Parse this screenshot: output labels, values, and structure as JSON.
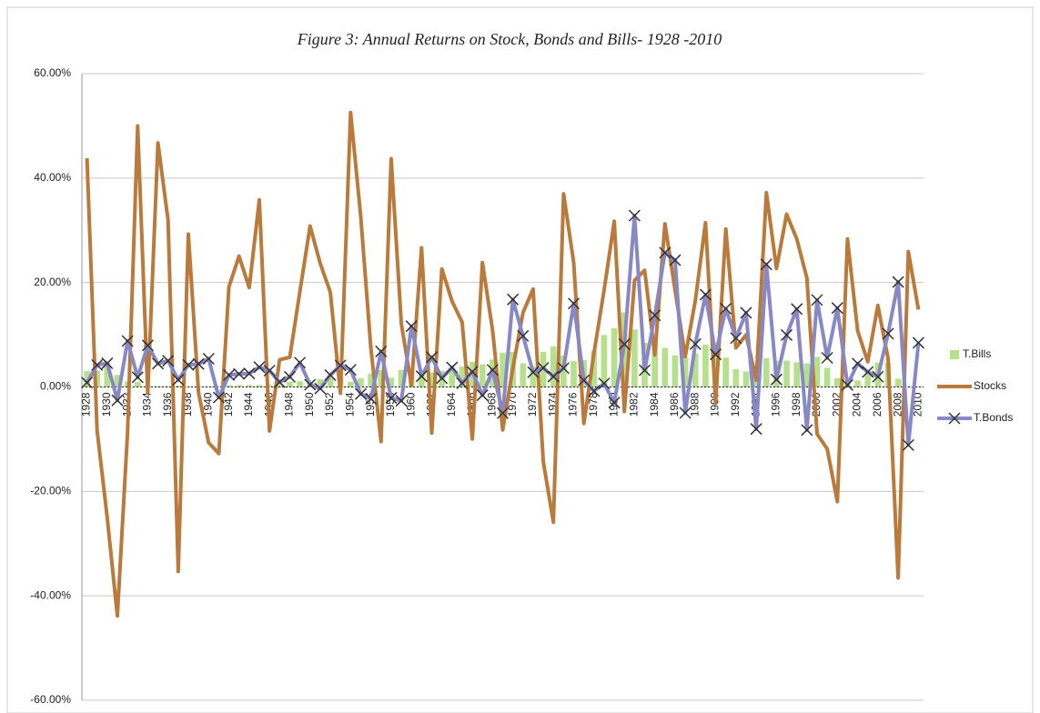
{
  "chart_data": {
    "type": "bar-line",
    "title": "Figure 3: Annual Returns on  Stock, Bonds and Bills- 1928 -2010",
    "categories": [
      "1928",
      null,
      "1930",
      null,
      "1932",
      null,
      "1934",
      null,
      "1936",
      null,
      "1938",
      null,
      "1940",
      null,
      "1942",
      null,
      "1944",
      null,
      "1946",
      null,
      "1948",
      null,
      "1950",
      null,
      "1952",
      null,
      "1954",
      null,
      "1956",
      null,
      "1958",
      null,
      "1960",
      null,
      "1962",
      null,
      "1964",
      null,
      "1966",
      null,
      "1968",
      null,
      "1970",
      null,
      "1972",
      null,
      "1974",
      null,
      "1976",
      null,
      "1978",
      null,
      "1980",
      null,
      "1982",
      null,
      "1984",
      null,
      "1986",
      null,
      "1988",
      null,
      "1990",
      null,
      "1992",
      null,
      "1994",
      null,
      "1996",
      null,
      "1998",
      null,
      "2000",
      null,
      "2002",
      null,
      "2004",
      null,
      "2006",
      null,
      "2008",
      null,
      "2010"
    ],
    "series": [
      {
        "name": "T.Bills",
        "type": "bar",
        "color": "#b6e08c",
        "values": [
          3.08,
          3.16,
          4.55,
          2.31,
          1.07,
          0.96,
          0.28,
          0.17,
          0.17,
          0.28,
          0.07,
          0.05,
          0.04,
          0.13,
          0.34,
          0.38,
          0.38,
          0.38,
          0.38,
          0.57,
          1.02,
          1.1,
          1.17,
          1.48,
          1.67,
          1.89,
          0.96,
          1.66,
          2.56,
          3.23,
          1.78,
          3.26,
          3.05,
          2.27,
          2.78,
          3.11,
          3.51,
          3.9,
          4.84,
          4.33,
          5.26,
          6.56,
          6.69,
          4.54,
          3.95,
          6.73,
          7.78,
          5.99,
          4.97,
          5.13,
          6.93,
          9.94,
          11.22,
          14.3,
          11.01,
          8.45,
          9.61,
          7.49,
          6.04,
          5.72,
          6.45,
          8.11,
          7.55,
          5.61,
          3.41,
          2.98,
          3.99,
          5.52,
          5.02,
          5.05,
          4.73,
          4.51,
          5.76,
          3.67,
          1.66,
          1.03,
          1.23,
          3.01,
          4.68,
          4.64,
          1.59,
          0.14,
          0.13
        ]
      },
      {
        "name": "Stocks",
        "type": "line",
        "color": "#b97a3c",
        "values": [
          43.81,
          -8.3,
          -25.12,
          -43.84,
          -8.64,
          49.98,
          -1.19,
          46.74,
          31.94,
          -35.34,
          29.28,
          -1.1,
          -10.67,
          -12.77,
          19.17,
          25.06,
          19.03,
          35.82,
          -8.43,
          5.2,
          5.7,
          18.3,
          30.81,
          23.68,
          18.15,
          -1.21,
          52.56,
          32.6,
          7.44,
          -10.46,
          43.72,
          12.06,
          0.34,
          26.64,
          -8.81,
          22.61,
          16.42,
          12.4,
          -9.97,
          23.8,
          10.81,
          -8.24,
          3.56,
          14.22,
          18.76,
          -14.31,
          -25.9,
          37,
          23.83,
          -6.98,
          6.51,
          18.52,
          31.74,
          -4.7,
          20.42,
          22.34,
          6.15,
          31.24,
          18.49,
          5.81,
          16.54,
          31.48,
          -3.06,
          30.23,
          7.49,
          9.97,
          1.33,
          37.2,
          22.68,
          33.1,
          28.34,
          20.89,
          -9.03,
          -11.85,
          -21.97,
          28.36,
          10.74,
          4.83,
          15.61,
          5.48,
          -36.58,
          25.94,
          14.82
        ]
      },
      {
        "name": "T.Bonds",
        "type": "line",
        "marker": "x",
        "color": "#8888c4",
        "values": [
          0.84,
          4.2,
          4.54,
          -2.56,
          8.79,
          1.86,
          7.96,
          4.47,
          5.02,
          1.38,
          4.21,
          4.41,
          5.4,
          -2.02,
          2.29,
          2.49,
          2.58,
          3.8,
          3.13,
          0.92,
          1.95,
          4.66,
          0.43,
          -0.3,
          2.27,
          4.14,
          3.29,
          -1.34,
          -2.26,
          6.8,
          -2.1,
          -2.65,
          11.64,
          2.06,
          5.69,
          1.68,
          3.73,
          0.72,
          2.91,
          -1.58,
          3.27,
          -5.01,
          16.75,
          9.79,
          2.82,
          3.66,
          1.99,
          3.61,
          15.98,
          1.29,
          -0.78,
          0.67,
          -2.99,
          8.2,
          32.81,
          3.2,
          13.73,
          25.71,
          24.28,
          -4.96,
          8.22,
          17.69,
          6.24,
          15,
          9.36,
          14.21,
          -8.04,
          23.48,
          1.43,
          9.94,
          14.92,
          -8.25,
          16.66,
          5.57,
          15.12,
          0.38,
          4.49,
          2.87,
          1.96,
          10.21,
          20.1,
          -11.12,
          8.46
        ]
      }
    ],
    "ylim": [
      -60,
      60
    ],
    "yticks": [
      {
        "value": -60,
        "label": "-60.00%"
      },
      {
        "value": -40,
        "label": "-40.00%"
      },
      {
        "value": -20,
        "label": "-20.00%"
      },
      {
        "value": 0,
        "label": "0.00%"
      },
      {
        "value": 20,
        "label": "20.00%"
      },
      {
        "value": 40,
        "label": "40.00%"
      },
      {
        "value": 60,
        "label": "60.00%"
      }
    ],
    "grid": true,
    "legend": "right"
  }
}
